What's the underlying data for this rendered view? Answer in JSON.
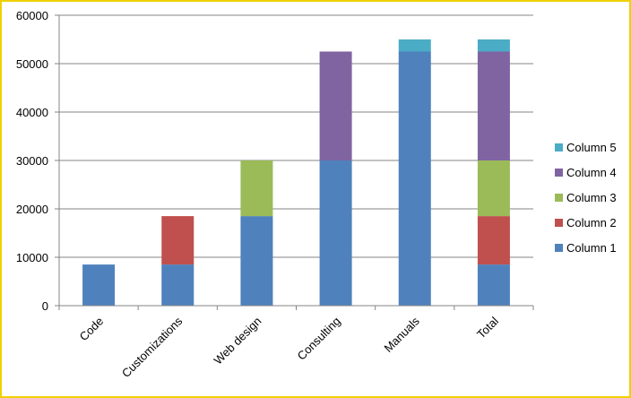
{
  "chart_data": {
    "type": "bar",
    "stacked": true,
    "title": "",
    "xlabel": "",
    "ylabel": "",
    "ylim": [
      0,
      60000
    ],
    "yticks": [
      0,
      10000,
      20000,
      30000,
      40000,
      50000,
      60000
    ],
    "grid": true,
    "legend_position": "right",
    "categories": [
      "Code",
      "Customizations",
      "Web design",
      "Consulting",
      "Manuals",
      "Total"
    ],
    "series": [
      {
        "name": "Column 1",
        "color": "#4F81BD",
        "values": [
          8500,
          8500,
          18500,
          30000,
          52500,
          8500
        ]
      },
      {
        "name": "Column 2",
        "color": "#C0504D",
        "values": [
          0,
          10000,
          0,
          0,
          0,
          10000
        ]
      },
      {
        "name": "Column 3",
        "color": "#9BBB59",
        "values": [
          0,
          0,
          11500,
          0,
          0,
          11500
        ]
      },
      {
        "name": "Column 4",
        "color": "#8064A2",
        "values": [
          0,
          0,
          0,
          22500,
          0,
          22500
        ]
      },
      {
        "name": "Column 5",
        "color": "#4BACC6",
        "values": [
          0,
          0,
          0,
          0,
          2500,
          2500
        ]
      }
    ]
  }
}
